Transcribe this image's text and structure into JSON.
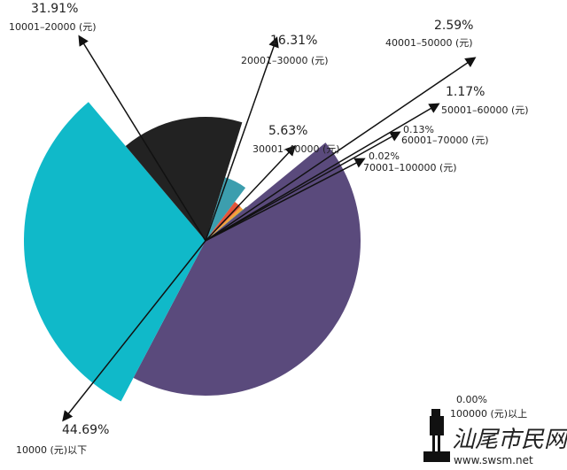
{
  "chart_data": {
    "type": "pie",
    "categories": [
      "10000 (元)以下",
      "10001–20000 (元)",
      "20001–30000 (元)",
      "30001–40000 (元)",
      "40001–50000 (元)",
      "50001–60000 (元)",
      "60001–70000 (元)",
      "70001–100000 (元)",
      "100000 (元)以上"
    ],
    "values": [
      44.69,
      31.91,
      16.31,
      5.63,
      2.59,
      1.17,
      0.13,
      0.02,
      0.0
    ],
    "value_labels": [
      "44.69%",
      "31.91%",
      "16.31%",
      "5.63%",
      "2.59%",
      "1.17%",
      "0.13%",
      "0.02%",
      "0.00%"
    ],
    "colors": [
      "#5a4a7c",
      "#10b9c9",
      "#222222",
      "#3c9eae",
      "#e5553a",
      "#f2a33a",
      "#1f6f5f",
      "#2e8b57",
      "#999999"
    ]
  },
  "watermark": {
    "name": "汕尾市民网",
    "url": "www.swsm.net"
  }
}
